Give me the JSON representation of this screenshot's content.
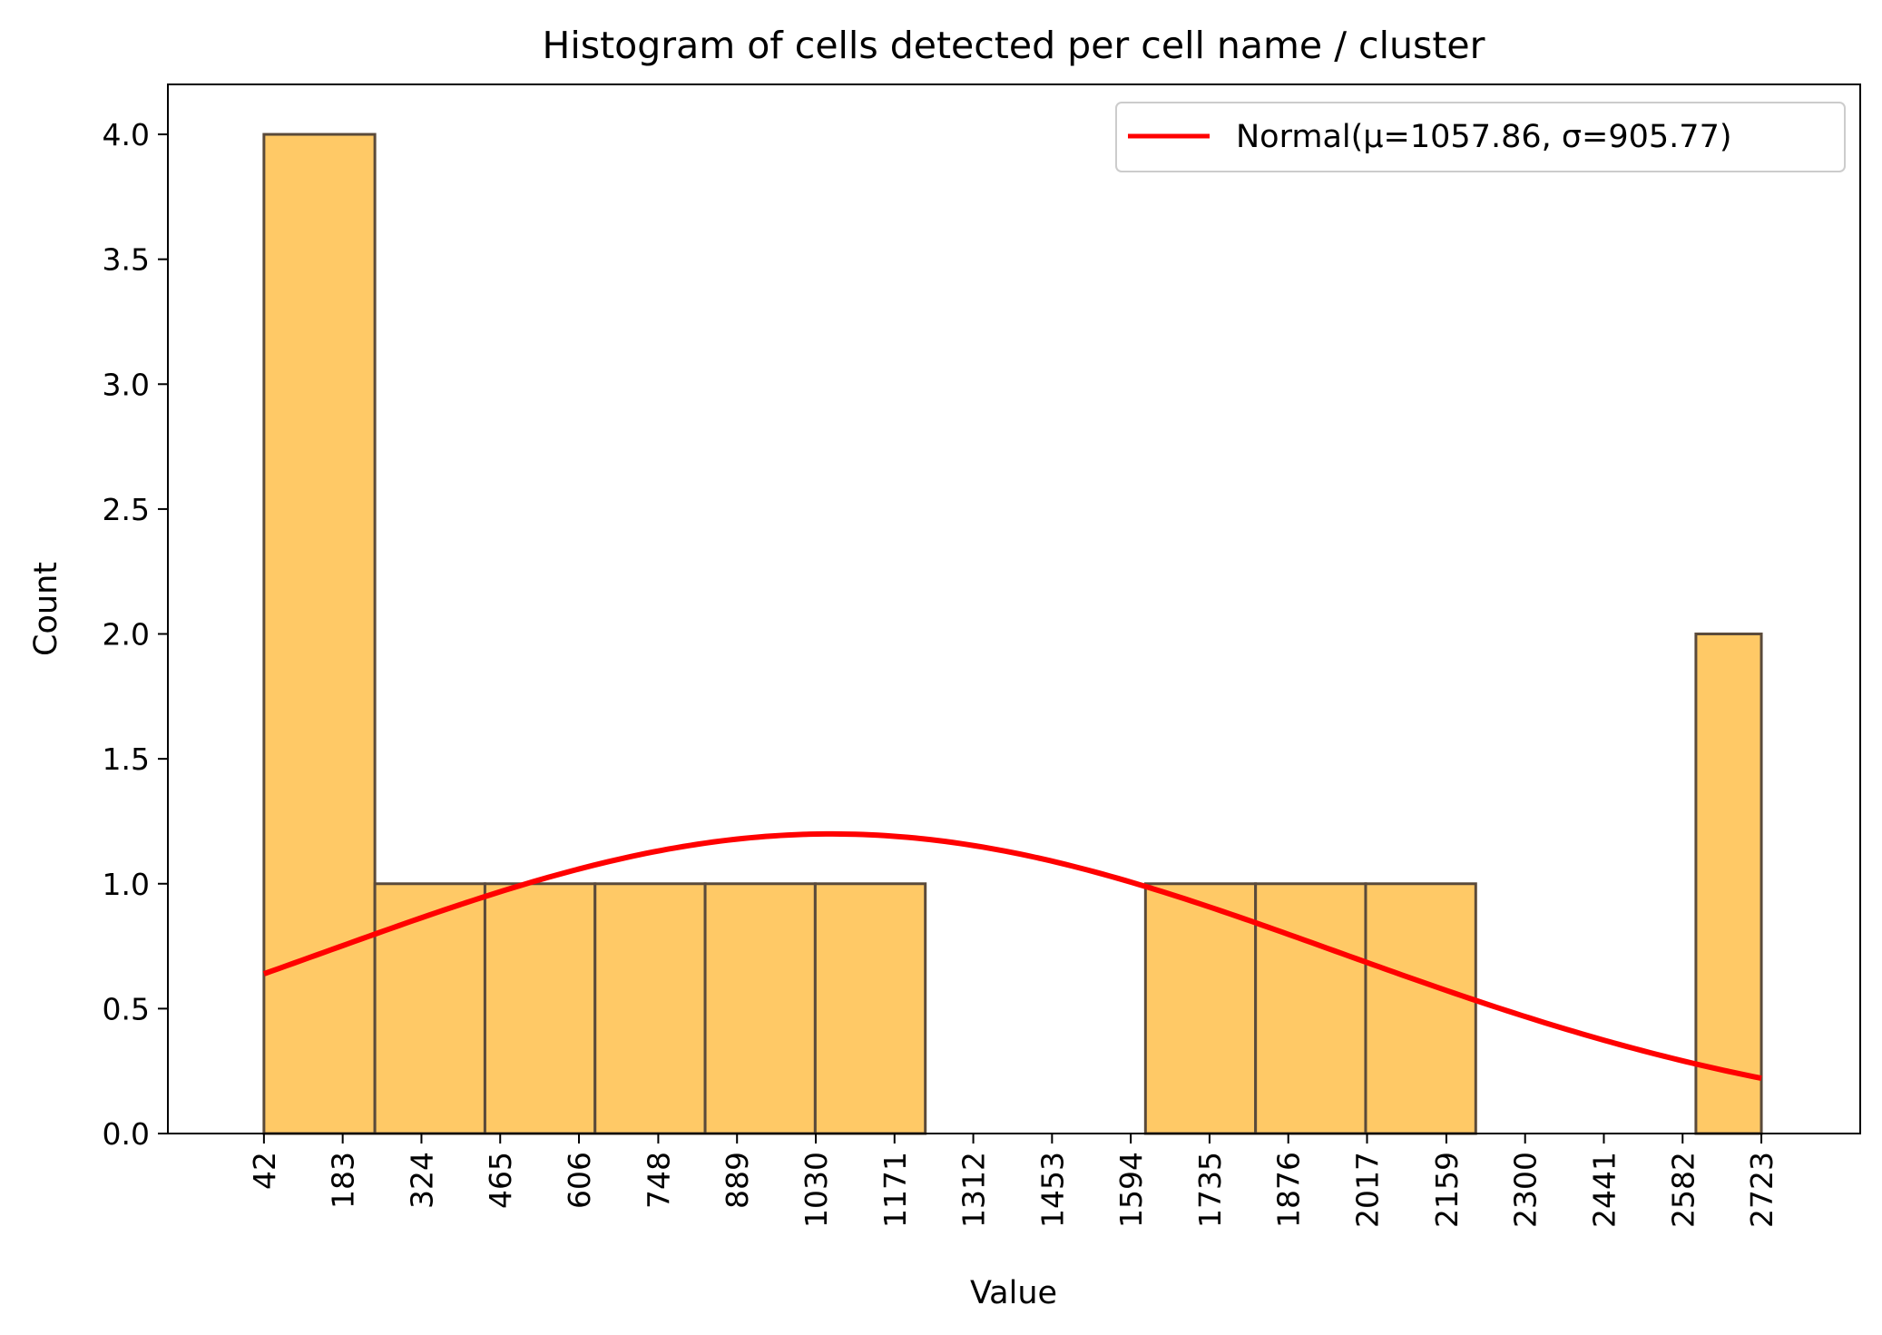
{
  "chart_data": {
    "type": "bar",
    "title": "Histogram of cells detected per cell name / cluster",
    "xlabel": "Value",
    "ylabel": "Count",
    "xlim": [
      -130,
      2900
    ],
    "ylim": [
      0,
      4.2
    ],
    "x_ticks": [
      42,
      183,
      324,
      465,
      606,
      748,
      889,
      1030,
      1171,
      1312,
      1453,
      1594,
      1735,
      1876,
      2017,
      2159,
      2300,
      2441,
      2582,
      2723
    ],
    "x_tick_labels": [
      "42",
      "183",
      "324",
      "465",
      "606",
      "748",
      "889",
      "1030",
      "1171",
      "1312",
      "1453",
      "1594",
      "1735",
      "1876",
      "2017",
      "2159",
      "2300",
      "2441",
      "2582",
      "2723"
    ],
    "y_ticks": [
      0,
      0.5,
      1,
      1.5,
      2,
      2.5,
      3,
      3.5,
      4
    ],
    "y_tick_labels": [
      "0.0",
      "0.5",
      "1.0",
      "1.5",
      "2.0",
      "2.5",
      "3.0",
      "3.5",
      "4.0"
    ],
    "bin_edges": [
      42,
      240.6,
      437.7,
      634.8,
      831.9,
      1029.0,
      1226.1,
      1423.2,
      1620.3,
      1817.4,
      2014.5,
      2211.6,
      2408.7,
      2605.8,
      2723
    ],
    "counts": [
      4,
      1,
      1,
      1,
      1,
      1,
      0,
      0,
      1,
      1,
      1,
      0,
      0,
      2
    ],
    "bar_fill": "#ffc966",
    "bar_edge": "#5a4a3a",
    "curve": {
      "label": "Normal(μ=1057.86, σ=905.77)",
      "mu": 1057.86,
      "sigma": 905.77,
      "scale_n": 14,
      "scale_binwidth": 194.5,
      "x_start": 42,
      "x_end": 2723,
      "color": "#ff0000"
    },
    "legend_position": "top-right"
  }
}
